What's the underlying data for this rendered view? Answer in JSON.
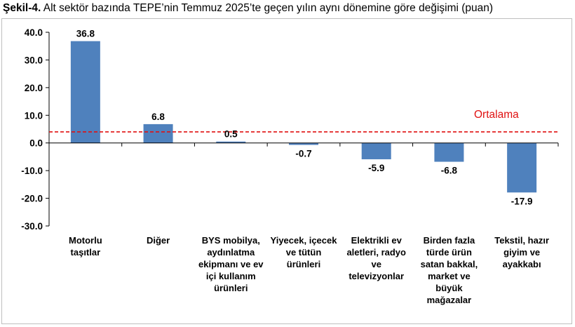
{
  "header": {
    "figure_no": "Şekil-4.",
    "caption": "Alt sektör bazında TEPE’nin Temmuz 2025’te geçen yılın aynı dönemine göre değişimi (puan)"
  },
  "chart_data": {
    "type": "bar",
    "title": "Alt sektör bazında TEPE’nin Temmuz 2025’te geçen yılın aynı dönemine göre değişimi (puan)",
    "categories": [
      [
        "Motorlu",
        "taşıtlar"
      ],
      [
        "Diğer"
      ],
      [
        "BYS mobilya,",
        "aydınlatma",
        "ekipmanı ve ev",
        "içi kullanım",
        "ürünleri"
      ],
      [
        "Yiyecek, içecek",
        "ve tütün",
        "ürünleri"
      ],
      [
        "Elektrikli ev",
        "aletleri, radyo",
        "ve",
        "televizyonlar"
      ],
      [
        "Birden fazla",
        "türde ürün",
        "satan bakkal,",
        "market ve",
        "büyük",
        "mağazalar"
      ],
      [
        "Tekstil, hazır",
        "giyim ve",
        "ayakkabı"
      ]
    ],
    "values": [
      36.8,
      6.8,
      0.5,
      -0.7,
      -5.9,
      -6.8,
      -17.9
    ],
    "value_labels": [
      "36.8",
      "6.8",
      "0.5",
      "-0.7",
      "-5.9",
      "-6.8",
      "-17.9"
    ],
    "ylim": [
      -30,
      40
    ],
    "yticks": [
      40,
      30,
      20,
      10,
      0,
      -10,
      -20,
      -30
    ],
    "ytick_labels": [
      "40.0",
      "30.0",
      "20.0",
      "10.0",
      "0.0",
      "-10.0",
      "-20.0",
      "-30.0"
    ],
    "reference_line": {
      "label": "Ortalama",
      "value": 4.0,
      "color": "#e01010"
    },
    "bar_color": "#4f81bd",
    "xlabel": "",
    "ylabel": "",
    "grid": false,
    "legend": "none"
  }
}
